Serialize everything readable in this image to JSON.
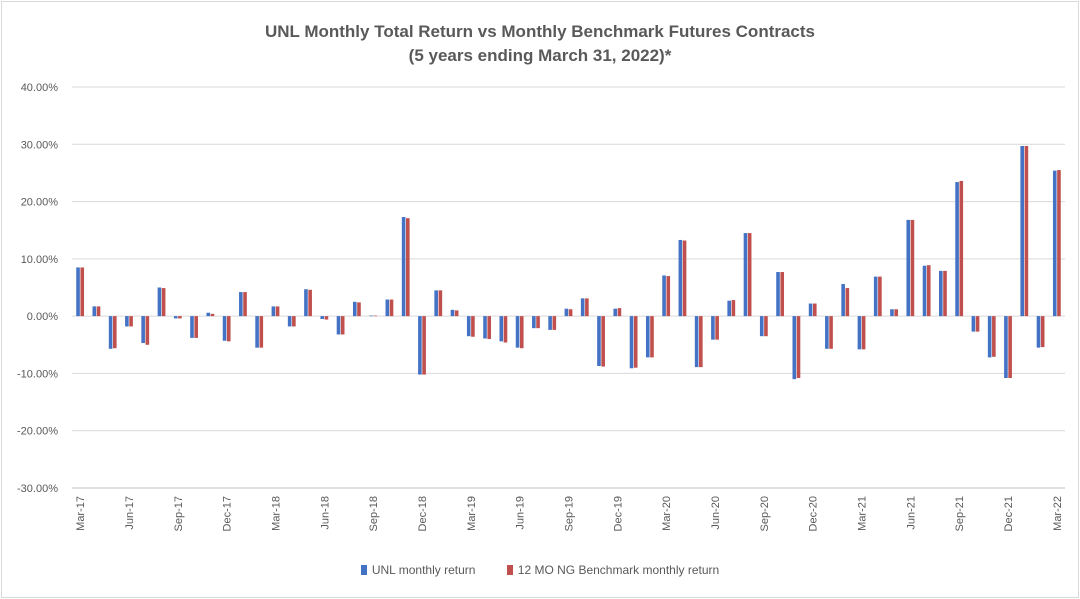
{
  "chart_data": {
    "type": "bar",
    "title": "UNL Monthly Total Return vs Monthly Benchmark Futures Contracts",
    "subtitle": "(5 years ending March 31, 2022)*",
    "xlabel": "",
    "ylabel": "",
    "ylim": [
      -0.3,
      0.4
    ],
    "y_ticks": [
      "40.00%",
      "30.00%",
      "20.00%",
      "10.00%",
      "0.00%",
      "-10.00%",
      "-20.00%",
      "-30.00%"
    ],
    "y_tick_values": [
      0.4,
      0.3,
      0.2,
      0.1,
      0.0,
      -0.1,
      -0.2,
      -0.3
    ],
    "grid": true,
    "legend_position": "bottom",
    "categories": [
      "Mar-17",
      "Apr-17",
      "May-17",
      "Jun-17",
      "Jul-17",
      "Aug-17",
      "Sep-17",
      "Oct-17",
      "Nov-17",
      "Dec-17",
      "Jan-18",
      "Feb-18",
      "Mar-18",
      "Apr-18",
      "May-18",
      "Jun-18",
      "Jul-18",
      "Aug-18",
      "Sep-18",
      "Oct-18",
      "Nov-18",
      "Dec-18",
      "Jan-19",
      "Feb-19",
      "Mar-19",
      "Apr-19",
      "May-19",
      "Jun-19",
      "Jul-19",
      "Aug-19",
      "Sep-19",
      "Oct-19",
      "Nov-19",
      "Dec-19",
      "Jan-20",
      "Feb-20",
      "Mar-20",
      "Apr-20",
      "May-20",
      "Jun-20",
      "Jul-20",
      "Aug-20",
      "Sep-20",
      "Oct-20",
      "Nov-20",
      "Dec-20",
      "Jan-21",
      "Feb-21",
      "Mar-21",
      "Apr-21",
      "May-21",
      "Jun-21",
      "Jul-21",
      "Aug-21",
      "Sep-21",
      "Oct-21",
      "Nov-21",
      "Dec-21",
      "Jan-22",
      "Feb-22",
      "Mar-22"
    ],
    "x_tick_labels": [
      "Mar-17",
      "Jun-17",
      "Sep-17",
      "Dec-17",
      "Mar-18",
      "Jun-18",
      "Sep-18",
      "Dec-18",
      "Mar-19",
      "Jun-19",
      "Sep-19",
      "Dec-19",
      "Mar-20",
      "Jun-20",
      "Sep-20",
      "Dec-20",
      "Mar-21",
      "Jun-21",
      "Sep-21",
      "Dec-21",
      "Mar-22"
    ],
    "series": [
      {
        "name": "UNL monthly return",
        "color": "#4472c4",
        "values": [
          0.085,
          0.017,
          -0.057,
          -0.018,
          -0.047,
          0.05,
          -0.004,
          -0.038,
          0.006,
          -0.043,
          0.042,
          -0.055,
          0.017,
          -0.018,
          0.047,
          -0.005,
          -0.032,
          0.025,
          0.001,
          0.029,
          0.173,
          -0.102,
          0.045,
          0.011,
          -0.035,
          -0.039,
          -0.044,
          -0.055,
          -0.021,
          -0.024,
          0.013,
          0.031,
          -0.087,
          0.013,
          -0.091,
          -0.072,
          0.071,
          0.133,
          -0.089,
          -0.041,
          0.027,
          0.145,
          -0.035,
          0.077,
          -0.11,
          0.022,
          -0.057,
          0.056,
          -0.058,
          0.069,
          0.012,
          0.168,
          0.088,
          0.079,
          0.234,
          -0.027,
          -0.072,
          -0.108,
          0.297,
          -0.055,
          0.254
        ]
      },
      {
        "name": "12 MO NG Benchmark monthly return",
        "color": "#c0504d",
        "values": [
          0.085,
          0.017,
          -0.056,
          -0.018,
          -0.05,
          0.049,
          -0.004,
          -0.038,
          0.004,
          -0.044,
          0.042,
          -0.055,
          0.017,
          -0.018,
          0.046,
          -0.006,
          -0.032,
          0.024,
          0.001,
          0.029,
          0.171,
          -0.102,
          0.045,
          0.01,
          -0.036,
          -0.04,
          -0.046,
          -0.056,
          -0.021,
          -0.024,
          0.012,
          0.031,
          -0.088,
          0.014,
          -0.09,
          -0.072,
          0.07,
          0.132,
          -0.089,
          -0.041,
          0.028,
          0.145,
          -0.035,
          0.077,
          -0.108,
          0.022,
          -0.057,
          0.049,
          -0.058,
          0.069,
          0.012,
          0.168,
          0.089,
          0.079,
          0.236,
          -0.027,
          -0.071,
          -0.108,
          0.297,
          -0.054,
          0.255
        ]
      }
    ]
  }
}
